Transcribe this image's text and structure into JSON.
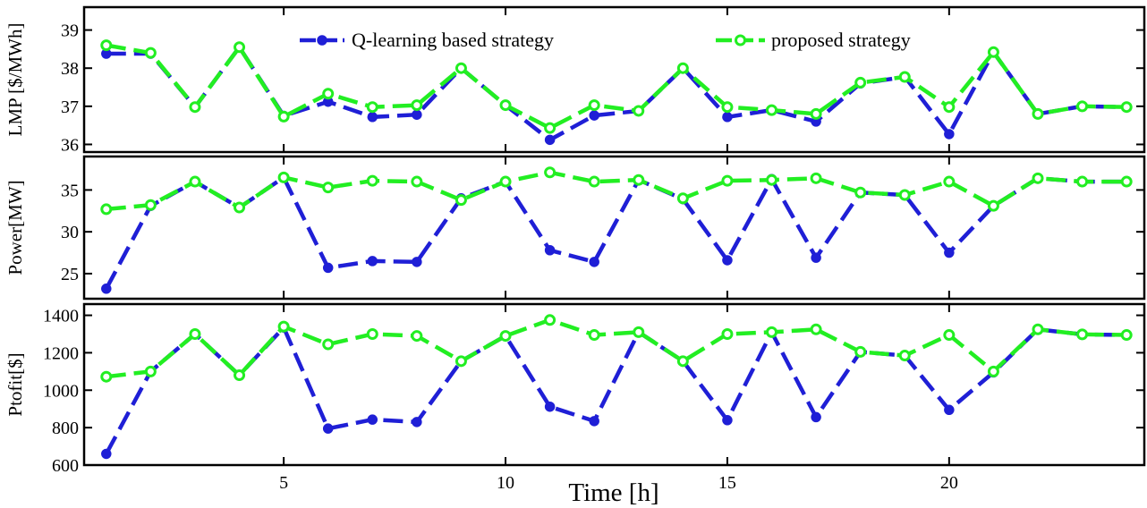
{
  "x_axis": {
    "label": "Time [h]",
    "ticks": [
      5,
      10,
      15,
      20
    ],
    "range": [
      0.5,
      24.4
    ]
  },
  "legend": {
    "q_learning": "Q-learning based strategy",
    "proposed": "proposed strategy"
  },
  "colors": {
    "q_learning": "#1f1fd6",
    "proposed": "#22ee22"
  },
  "chart_data": [
    {
      "type": "line",
      "ylabel": "LMP [$/MWh]",
      "ylim": [
        35.8,
        39.6
      ],
      "yticks": [
        36,
        37,
        38,
        39
      ],
      "x": [
        1,
        2,
        3,
        4,
        5,
        6,
        7,
        8,
        9,
        10,
        11,
        12,
        13,
        14,
        15,
        16,
        17,
        18,
        19,
        20,
        21,
        22,
        23,
        24
      ],
      "series": [
        {
          "name": "Q-learning based strategy",
          "values": [
            38.38,
            38.38,
            36.98,
            38.55,
            36.75,
            37.12,
            36.72,
            36.78,
            38.0,
            37.03,
            36.12,
            36.76,
            36.88,
            38.0,
            36.72,
            36.9,
            36.6,
            37.6,
            37.77,
            36.27,
            38.42,
            36.8,
            37.0,
            36.98
          ]
        },
        {
          "name": "proposed strategy",
          "values": [
            38.6,
            38.4,
            36.98,
            38.55,
            36.73,
            37.33,
            36.98,
            37.03,
            38.0,
            37.03,
            36.43,
            37.03,
            36.88,
            38.0,
            36.98,
            36.9,
            36.8,
            37.62,
            37.77,
            36.98,
            38.42,
            36.8,
            37.0,
            36.98
          ]
        }
      ]
    },
    {
      "type": "line",
      "ylabel": "Power[MW]",
      "ylim": [
        22,
        39
      ],
      "yticks": [
        25,
        30,
        35
      ],
      "x": [
        1,
        2,
        3,
        4,
        5,
        6,
        7,
        8,
        9,
        10,
        11,
        12,
        13,
        14,
        15,
        16,
        17,
        18,
        19,
        20,
        21,
        22,
        23,
        24
      ],
      "series": [
        {
          "name": "Q-learning based strategy",
          "values": [
            23.2,
            33.1,
            36.0,
            32.9,
            36.5,
            25.7,
            26.5,
            26.4,
            34.0,
            36.0,
            27.8,
            26.4,
            36.2,
            33.9,
            26.6,
            36.3,
            26.9,
            34.7,
            34.4,
            27.5,
            33.1,
            36.4,
            36.0,
            36.0
          ]
        },
        {
          "name": "proposed strategy",
          "values": [
            32.7,
            33.2,
            36.0,
            32.9,
            36.5,
            35.3,
            36.1,
            36.0,
            33.8,
            36.0,
            37.1,
            36.0,
            36.2,
            34.0,
            36.1,
            36.2,
            36.4,
            34.7,
            34.4,
            36.0,
            33.1,
            36.4,
            36.0,
            36.0
          ]
        }
      ]
    },
    {
      "type": "line",
      "ylabel": "Ptofit[$]",
      "ylim": [
        600,
        1460
      ],
      "yticks": [
        600,
        800,
        1000,
        1200,
        1400
      ],
      "x": [
        1,
        2,
        3,
        4,
        5,
        6,
        7,
        8,
        9,
        10,
        11,
        12,
        13,
        14,
        15,
        16,
        17,
        18,
        19,
        20,
        21,
        22,
        23,
        24
      ],
      "series": [
        {
          "name": "Q-learning based strategy",
          "values": [
            660,
            1100,
            1300,
            1080,
            1335,
            795,
            843,
            830,
            1155,
            1290,
            912,
            835,
            1310,
            1155,
            840,
            1310,
            856,
            1205,
            1185,
            895,
            1095,
            1325,
            1298,
            1295
          ]
        },
        {
          "name": "proposed strategy",
          "values": [
            1072,
            1100,
            1300,
            1080,
            1340,
            1245,
            1300,
            1290,
            1155,
            1290,
            1375,
            1295,
            1310,
            1155,
            1300,
            1310,
            1325,
            1205,
            1185,
            1295,
            1100,
            1325,
            1298,
            1295
          ]
        }
      ]
    }
  ]
}
